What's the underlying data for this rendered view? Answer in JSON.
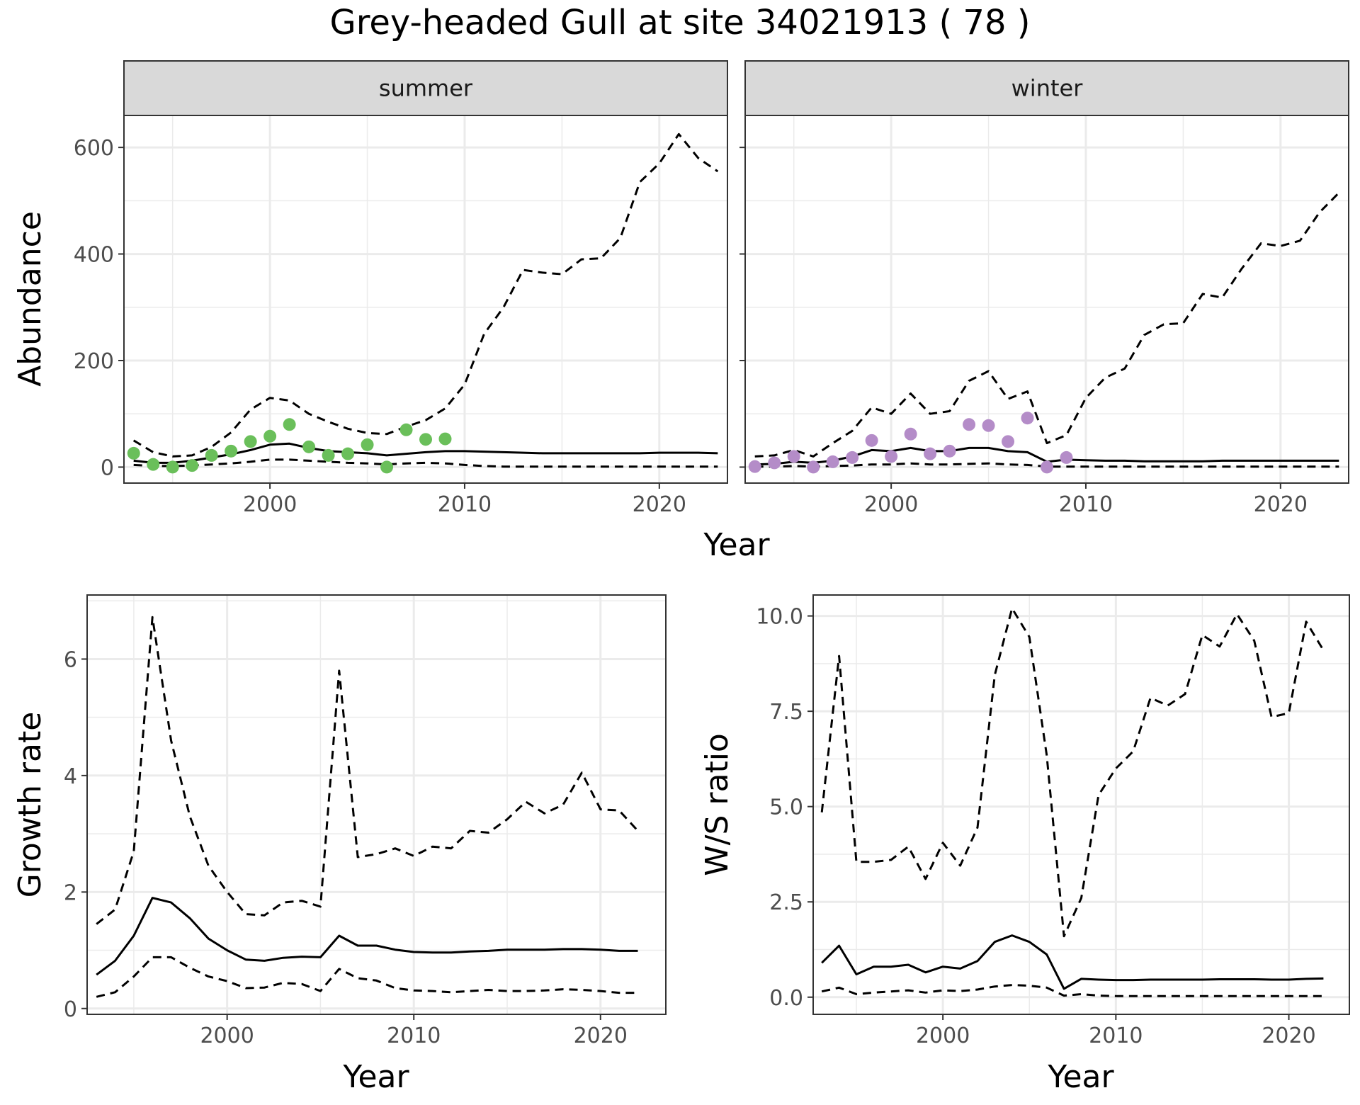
{
  "title": "Grey-headed Gull at site 34021913 ( 78 )",
  "colors": {
    "summer": "#6abf5a",
    "winter": "#b48cc8",
    "line": "#000000",
    "strip_bg": "#d9d9d9",
    "grid": "#ebebeb"
  },
  "chart_data": [
    {
      "id": "abundance-summer",
      "type": "line",
      "panel": "summer",
      "ylabel": "Abundance",
      "xlabel": "Year",
      "xlim": [
        1992.5,
        2023.5
      ],
      "ylim": [
        -30,
        660
      ],
      "xticks": [
        2000,
        2010,
        2020
      ],
      "yticks": [
        0,
        200,
        400,
        600
      ],
      "series": [
        {
          "role": "mean",
          "x": [
            1993,
            1994,
            1995,
            1996,
            1997,
            1998,
            1999,
            2000,
            2001,
            2002,
            2003,
            2004,
            2005,
            2006,
            2007,
            2008,
            2009,
            2010,
            2011,
            2012,
            2013,
            2014,
            2015,
            2016,
            2017,
            2018,
            2019,
            2020,
            2021,
            2022,
            2023
          ],
          "y": [
            12,
            8,
            8,
            12,
            18,
            24,
            32,
            42,
            44,
            36,
            30,
            28,
            26,
            22,
            25,
            28,
            30,
            30,
            29,
            28,
            27,
            26,
            26,
            26,
            26,
            26,
            26,
            27,
            27,
            27,
            26
          ]
        },
        {
          "role": "upper",
          "x": [
            1993,
            1994,
            1995,
            1996,
            1997,
            1998,
            1999,
            2000,
            2001,
            2002,
            2003,
            2004,
            2005,
            2006,
            2007,
            2008,
            2009,
            2010,
            2011,
            2012,
            2013,
            2014,
            2015,
            2016,
            2017,
            2018,
            2019,
            2020,
            2021,
            2022,
            2023
          ],
          "y": [
            50,
            28,
            20,
            22,
            38,
            65,
            108,
            130,
            125,
            100,
            85,
            72,
            64,
            62,
            76,
            88,
            110,
            155,
            250,
            300,
            370,
            365,
            362,
            390,
            392,
            430,
            535,
            570,
            625,
            580,
            555
          ]
        },
        {
          "role": "lower",
          "x": [
            1993,
            1994,
            1995,
            1996,
            1997,
            1998,
            1999,
            2000,
            2001,
            2002,
            2003,
            2004,
            2005,
            2006,
            2007,
            2008,
            2009,
            2010,
            2011,
            2012,
            2013,
            2014,
            2015,
            2016,
            2017,
            2018,
            2019,
            2020,
            2021,
            2022,
            2023
          ],
          "y": [
            4,
            2,
            2,
            3,
            5,
            7,
            10,
            14,
            14,
            12,
            10,
            8,
            7,
            5,
            7,
            8,
            7,
            4,
            2,
            1,
            1,
            1,
            1,
            1,
            1,
            1,
            1,
            1,
            1,
            1,
            1
          ]
        }
      ],
      "points": {
        "x": [
          1993,
          1994,
          1995,
          1996,
          1997,
          1998,
          1999,
          2000,
          2001,
          2002,
          2003,
          2004,
          2005,
          2006,
          2007,
          2008,
          2009
        ],
        "y": [
          26,
          5,
          0,
          3,
          22,
          30,
          48,
          58,
          80,
          38,
          22,
          25,
          42,
          0,
          70,
          52,
          53
        ]
      }
    },
    {
      "id": "abundance-winter",
      "type": "line",
      "panel": "winter",
      "ylabel": "",
      "xlabel": "Year",
      "xlim": [
        1992.5,
        2023.5
      ],
      "ylim": [
        -30,
        660
      ],
      "xticks": [
        2000,
        2010,
        2020
      ],
      "yticks": [
        0,
        200,
        400,
        600
      ],
      "series": [
        {
          "role": "mean",
          "x": [
            1993,
            1994,
            1995,
            1996,
            1997,
            1998,
            1999,
            2000,
            2001,
            2002,
            2003,
            2004,
            2005,
            2006,
            2007,
            2008,
            2009,
            2010,
            2011,
            2012,
            2013,
            2014,
            2015,
            2016,
            2017,
            2018,
            2019,
            2020,
            2021,
            2022,
            2023
          ],
          "y": [
            5,
            6,
            10,
            8,
            12,
            20,
            32,
            30,
            36,
            30,
            30,
            36,
            36,
            30,
            28,
            10,
            14,
            13,
            12,
            12,
            11,
            11,
            11,
            11,
            12,
            12,
            12,
            12,
            12,
            12,
            12
          ]
        },
        {
          "role": "upper",
          "x": [
            1993,
            1994,
            1995,
            1996,
            1997,
            1998,
            1999,
            2000,
            2001,
            2002,
            2003,
            2004,
            2005,
            2006,
            2007,
            2008,
            2009,
            2010,
            2011,
            2012,
            2013,
            2014,
            2015,
            2016,
            2017,
            2018,
            2019,
            2020,
            2021,
            2022,
            2023
          ],
          "y": [
            20,
            22,
            32,
            20,
            45,
            68,
            112,
            100,
            138,
            100,
            105,
            162,
            180,
            128,
            142,
            45,
            60,
            130,
            168,
            185,
            248,
            268,
            270,
            325,
            318,
            372,
            420,
            415,
            425,
            478,
            515
          ]
        },
        {
          "role": "lower",
          "x": [
            1993,
            1994,
            1995,
            1996,
            1997,
            1998,
            1999,
            2000,
            2001,
            2002,
            2003,
            2004,
            2005,
            2006,
            2007,
            2008,
            2009,
            2010,
            2011,
            2012,
            2013,
            2014,
            2015,
            2016,
            2017,
            2018,
            2019,
            2020,
            2021,
            2022,
            2023
          ],
          "y": [
            1,
            1,
            2,
            1,
            2,
            3,
            5,
            5,
            7,
            5,
            5,
            6,
            7,
            5,
            4,
            1,
            1,
            1,
            1,
            1,
            1,
            1,
            1,
            1,
            1,
            1,
            1,
            1,
            1,
            1,
            1
          ]
        }
      ],
      "points": {
        "x": [
          1993,
          1994,
          1995,
          1996,
          1997,
          1998,
          1999,
          2000,
          2001,
          2002,
          2003,
          2004,
          2005,
          2006,
          2007,
          2008,
          2009
        ],
        "y": [
          1,
          8,
          20,
          0,
          10,
          18,
          50,
          20,
          62,
          25,
          30,
          80,
          78,
          48,
          92,
          0,
          18
        ]
      }
    },
    {
      "id": "growth-rate",
      "type": "line",
      "ylabel": "Growth rate",
      "xlabel": "Year",
      "xlim": [
        1992.5,
        2023.5
      ],
      "ylim": [
        -0.1,
        7.1
      ],
      "xticks": [
        2000,
        2010,
        2020
      ],
      "yticks": [
        0,
        2,
        4,
        6
      ],
      "series": [
        {
          "role": "mean",
          "x": [
            1993,
            1994,
            1995,
            1996,
            1997,
            1998,
            1999,
            2000,
            2001,
            2002,
            2003,
            2004,
            2005,
            2006,
            2007,
            2008,
            2009,
            2010,
            2011,
            2012,
            2013,
            2014,
            2015,
            2016,
            2017,
            2018,
            2019,
            2020,
            2021,
            2022
          ],
          "y": [
            0.58,
            0.82,
            1.25,
            1.9,
            1.82,
            1.55,
            1.2,
            1.0,
            0.84,
            0.82,
            0.87,
            0.89,
            0.88,
            1.25,
            1.08,
            1.08,
            1.01,
            0.97,
            0.96,
            0.96,
            0.98,
            0.99,
            1.01,
            1.01,
            1.01,
            1.02,
            1.02,
            1.01,
            0.99,
            0.99
          ]
        },
        {
          "role": "upper",
          "x": [
            1993,
            1994,
            1995,
            1996,
            1997,
            1998,
            1999,
            2000,
            2001,
            2002,
            2003,
            2004,
            2005,
            2006,
            2007,
            2008,
            2009,
            2010,
            2011,
            2012,
            2013,
            2014,
            2015,
            2016,
            2017,
            2018,
            2019,
            2020,
            2021,
            2022
          ],
          "y": [
            1.45,
            1.7,
            2.7,
            6.72,
            4.6,
            3.3,
            2.45,
            2.0,
            1.62,
            1.6,
            1.82,
            1.85,
            1.75,
            5.8,
            2.6,
            2.65,
            2.75,
            2.62,
            2.78,
            2.75,
            3.05,
            3.02,
            3.25,
            3.55,
            3.35,
            3.5,
            4.05,
            3.42,
            3.4,
            3.05
          ]
        },
        {
          "role": "lower",
          "x": [
            1993,
            1994,
            1995,
            1996,
            1997,
            1998,
            1999,
            2000,
            2001,
            2002,
            2003,
            2004,
            2005,
            2006,
            2007,
            2008,
            2009,
            2010,
            2011,
            2012,
            2013,
            2014,
            2015,
            2016,
            2017,
            2018,
            2019,
            2020,
            2021,
            2022
          ],
          "y": [
            0.2,
            0.28,
            0.55,
            0.88,
            0.88,
            0.7,
            0.55,
            0.47,
            0.35,
            0.36,
            0.44,
            0.42,
            0.3,
            0.68,
            0.52,
            0.48,
            0.35,
            0.31,
            0.3,
            0.28,
            0.3,
            0.32,
            0.3,
            0.3,
            0.31,
            0.33,
            0.32,
            0.3,
            0.27,
            0.27
          ]
        }
      ]
    },
    {
      "id": "ws-ratio",
      "type": "line",
      "ylabel": "W/S ratio",
      "xlabel": "Year",
      "xlim": [
        1992.5,
        2023.5
      ],
      "ylim": [
        -0.45,
        10.55
      ],
      "xticks": [
        2000,
        2010,
        2020
      ],
      "yticks": [
        0.0,
        2.5,
        5.0,
        7.5,
        10.0
      ],
      "ytick_labels": [
        "0.0",
        "2.5",
        "5.0",
        "7.5",
        "10.0"
      ],
      "series": [
        {
          "role": "mean",
          "x": [
            1993,
            1994,
            1995,
            1996,
            1997,
            1998,
            1999,
            2000,
            2001,
            2002,
            2003,
            2004,
            2005,
            2006,
            2007,
            2008,
            2009,
            2010,
            2011,
            2012,
            2013,
            2014,
            2015,
            2016,
            2017,
            2018,
            2019,
            2020,
            2021,
            2022
          ],
          "y": [
            0.9,
            1.35,
            0.6,
            0.8,
            0.8,
            0.85,
            0.65,
            0.8,
            0.75,
            0.95,
            1.45,
            1.62,
            1.45,
            1.12,
            0.22,
            0.48,
            0.46,
            0.45,
            0.45,
            0.46,
            0.46,
            0.46,
            0.46,
            0.47,
            0.47,
            0.47,
            0.46,
            0.46,
            0.48,
            0.49
          ]
        },
        {
          "role": "upper",
          "x": [
            1993,
            1994,
            1995,
            1996,
            1997,
            1998,
            1999,
            2000,
            2001,
            2002,
            2003,
            2004,
            2005,
            2006,
            2007,
            2008,
            2009,
            2010,
            2011,
            2012,
            2013,
            2014,
            2015,
            2016,
            2017,
            2018,
            2019,
            2020,
            2021,
            2022
          ],
          "y": [
            4.85,
            8.95,
            3.55,
            3.55,
            3.6,
            3.95,
            3.1,
            4.05,
            3.45,
            4.45,
            8.45,
            10.2,
            9.45,
            6.35,
            1.6,
            2.6,
            5.3,
            6.0,
            6.45,
            7.85,
            7.65,
            7.95,
            9.5,
            9.2,
            10.05,
            9.35,
            7.35,
            7.45,
            9.85,
            9.1
          ]
        },
        {
          "role": "lower",
          "x": [
            1993,
            1994,
            1995,
            1996,
            1997,
            1998,
            1999,
            2000,
            2001,
            2002,
            2003,
            2004,
            2005,
            2006,
            2007,
            2008,
            2009,
            2010,
            2011,
            2012,
            2013,
            2014,
            2015,
            2016,
            2017,
            2018,
            2019,
            2020,
            2021,
            2022
          ],
          "y": [
            0.15,
            0.25,
            0.08,
            0.12,
            0.15,
            0.18,
            0.12,
            0.18,
            0.16,
            0.2,
            0.28,
            0.32,
            0.3,
            0.25,
            0.04,
            0.08,
            0.04,
            0.03,
            0.03,
            0.03,
            0.03,
            0.03,
            0.03,
            0.03,
            0.03,
            0.03,
            0.03,
            0.03,
            0.03,
            0.03
          ]
        }
      ]
    }
  ]
}
